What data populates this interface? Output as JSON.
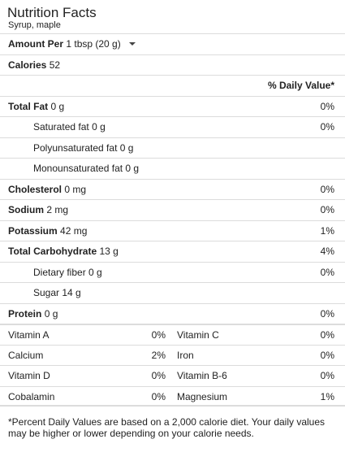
{
  "header": {
    "title": "Nutrition Facts",
    "subtitle": "Syrup, maple"
  },
  "serving": {
    "label": "Amount Per",
    "value": "1 tbsp (20 g)",
    "dropdown_icon": "triangle-down"
  },
  "calories": {
    "label": "Calories",
    "value": "52"
  },
  "daily_value_header": "% Daily Value*",
  "nutrients": [
    {
      "name": "Total Fat",
      "amount": "0 g",
      "pct": "0%"
    },
    {
      "name": "Saturated fat",
      "amount": "0 g",
      "pct": "0%"
    },
    {
      "name": "Polyunsaturated fat",
      "amount": "0 g",
      "pct": ""
    },
    {
      "name": "Monounsaturated fat",
      "amount": "0 g",
      "pct": ""
    },
    {
      "name": "Cholesterol",
      "amount": "0 mg",
      "pct": "0%"
    },
    {
      "name": "Sodium",
      "amount": "2 mg",
      "pct": "0%"
    },
    {
      "name": "Potassium",
      "amount": "42 mg",
      "pct": "1%"
    },
    {
      "name": "Total Carbohydrate",
      "amount": "13 g",
      "pct": "4%"
    },
    {
      "name": "Dietary fiber",
      "amount": "0 g",
      "pct": "0%"
    },
    {
      "name": "Sugar",
      "amount": "14 g",
      "pct": ""
    },
    {
      "name": "Protein",
      "amount": "0 g",
      "pct": "0%"
    }
  ],
  "vitamins": [
    {
      "left_name": "Vitamin A",
      "left_pct": "0%",
      "right_name": "Vitamin C",
      "right_pct": "0%"
    },
    {
      "left_name": "Calcium",
      "left_pct": "2%",
      "right_name": "Iron",
      "right_pct": "0%"
    },
    {
      "left_name": "Vitamin D",
      "left_pct": "0%",
      "right_name": "Vitamin B-6",
      "right_pct": "0%"
    },
    {
      "left_name": "Cobalamin",
      "left_pct": "0%",
      "right_name": "Magnesium",
      "right_pct": "1%"
    }
  ],
  "footnote": "*Percent Daily Values are based on a 2,000 calorie diet. Your daily values may be higher or lower depending on your calorie needs."
}
